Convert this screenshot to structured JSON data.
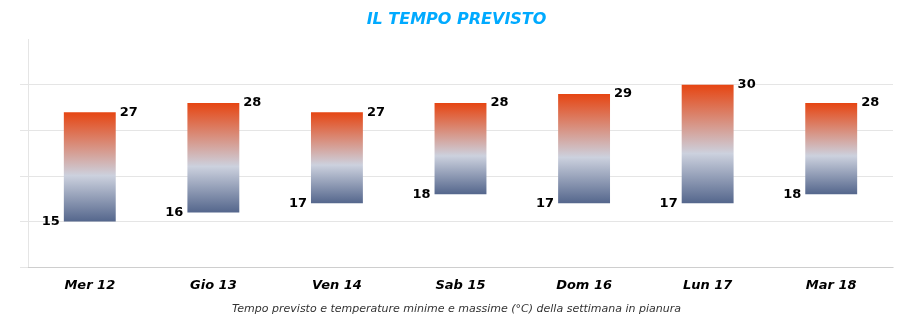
{
  "chart_data": {
    "type": "bar",
    "title": "IL TEMPO PREVISTO",
    "subtitle": "Tempo previsto e temperature minime e massime (°C) della settimana in pianura",
    "categories": [
      "Mer 12",
      "Gio 13",
      "Ven 14",
      "Sab 15",
      "Dom 16",
      "Lun 17",
      "Mar 18"
    ],
    "values": [
      [
        15,
        27
      ],
      [
        16,
        28
      ],
      [
        17,
        27
      ],
      [
        18,
        28
      ],
      [
        17,
        29
      ],
      [
        17,
        30
      ],
      [
        18,
        28
      ]
    ],
    "color": [
      "#54668C",
      "#CCD1DE",
      "#E64512"
    ],
    "ylim": [
      10,
      35
    ],
    "yticks": [
      10,
      15,
      20,
      25,
      30
    ],
    "grid": true,
    "data_labels": true,
    "tick_labels": "x"
  }
}
